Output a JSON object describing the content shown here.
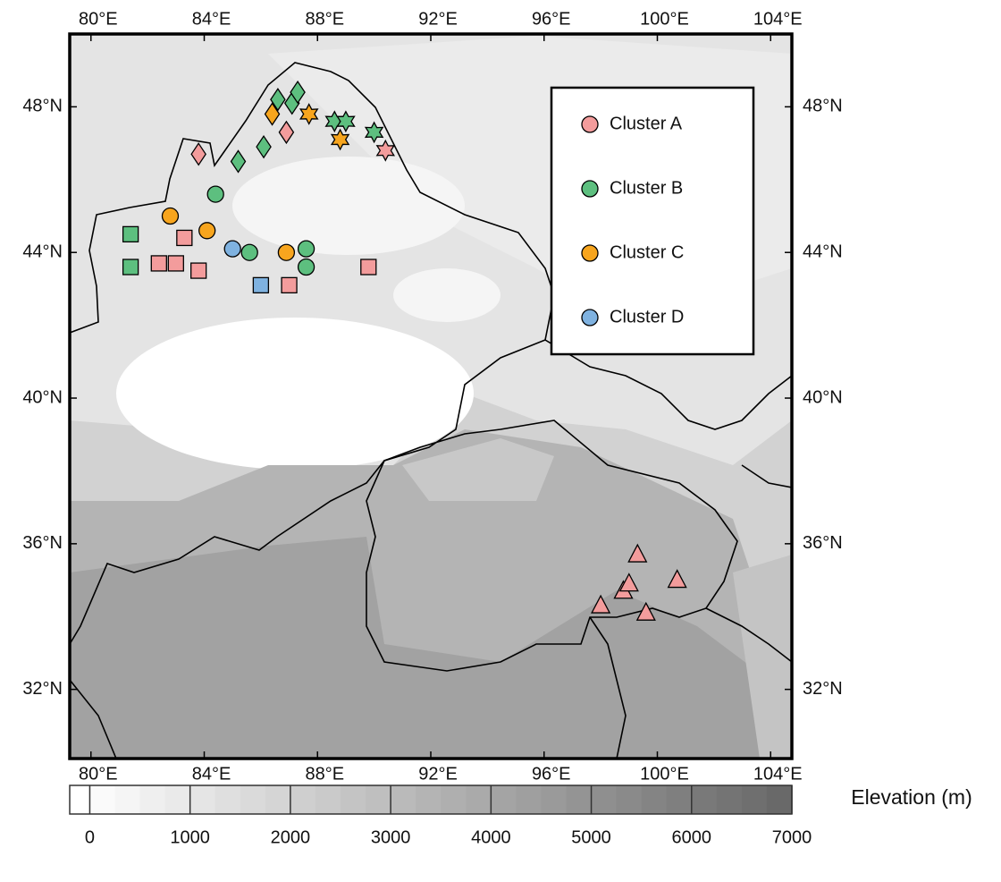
{
  "chart_data": {
    "type": "map",
    "xlim": [
      79.25,
      104.75
    ],
    "ylim": [
      30.1,
      50
    ],
    "xticks": [
      {
        "value": 80,
        "label": "80°E"
      },
      {
        "value": 84,
        "label": "84°E"
      },
      {
        "value": 88,
        "label": "88°E"
      },
      {
        "value": 92,
        "label": "92°E"
      },
      {
        "value": 96,
        "label": "96°E"
      },
      {
        "value": 100,
        "label": "100°E"
      },
      {
        "value": 104,
        "label": "104°E"
      }
    ],
    "yticks": [
      {
        "value": 32,
        "label": "32°N"
      },
      {
        "value": 36,
        "label": "36°N"
      },
      {
        "value": 40,
        "label": "40°N"
      },
      {
        "value": 44,
        "label": "44°N"
      },
      {
        "value": 48,
        "label": "48°N"
      }
    ],
    "series": [
      {
        "name": "Cluster A",
        "color": "#f39c9c",
        "x": [
          98.0,
          98.8,
          99.3,
          99.0,
          100.7,
          99.6,
          83.3,
          82.4,
          83.0,
          83.8,
          87.0,
          89.8,
          83.8,
          86.9,
          90.4
        ],
        "y": [
          34.3,
          34.7,
          35.7,
          34.9,
          35.0,
          34.1,
          44.4,
          43.7,
          43.7,
          43.5,
          43.1,
          43.6,
          46.7,
          47.3,
          46.8
        ],
        "shapes": [
          "triangle",
          "triangle",
          "triangle",
          "triangle",
          "triangle",
          "triangle",
          "square",
          "square",
          "square",
          "square",
          "square",
          "square",
          "diamond",
          "diamond",
          "star"
        ]
      },
      {
        "name": "Cluster B",
        "color": "#5dbf7f",
        "x": [
          81.4,
          81.4,
          84.4,
          85.6,
          87.6,
          87.6,
          85.2,
          86.1,
          86.6,
          87.1,
          87.3,
          88.6,
          89.0,
          90.0
        ],
        "y": [
          44.5,
          43.6,
          45.6,
          44.0,
          44.1,
          43.6,
          46.5,
          46.9,
          48.2,
          48.1,
          48.4,
          47.6,
          47.6,
          47.3
        ],
        "shapes": [
          "square",
          "square",
          "circle",
          "circle",
          "circle",
          "circle",
          "diamond",
          "diamond",
          "diamond",
          "diamond",
          "diamond",
          "star",
          "star",
          "star"
        ]
      },
      {
        "name": "Cluster C",
        "color": "#f7a51e",
        "x": [
          82.8,
          84.1,
          86.9,
          86.4,
          87.7,
          88.8
        ],
        "y": [
          45.0,
          44.6,
          44.0,
          47.8,
          47.8,
          47.1
        ],
        "shapes": [
          "circle",
          "circle",
          "circle",
          "diamond",
          "star",
          "star"
        ]
      },
      {
        "name": "Cluster D",
        "color": "#7fb2e0",
        "x": [
          86.0,
          85.0
        ],
        "y": [
          43.1,
          44.1
        ],
        "shapes": [
          "square",
          "circle"
        ]
      }
    ],
    "colorbar": {
      "label": "Elevation (m)",
      "lim": [
        -200,
        7000
      ],
      "ticks": [
        0,
        1000,
        2000,
        3000,
        4000,
        5000,
        6000,
        7000
      ]
    }
  }
}
